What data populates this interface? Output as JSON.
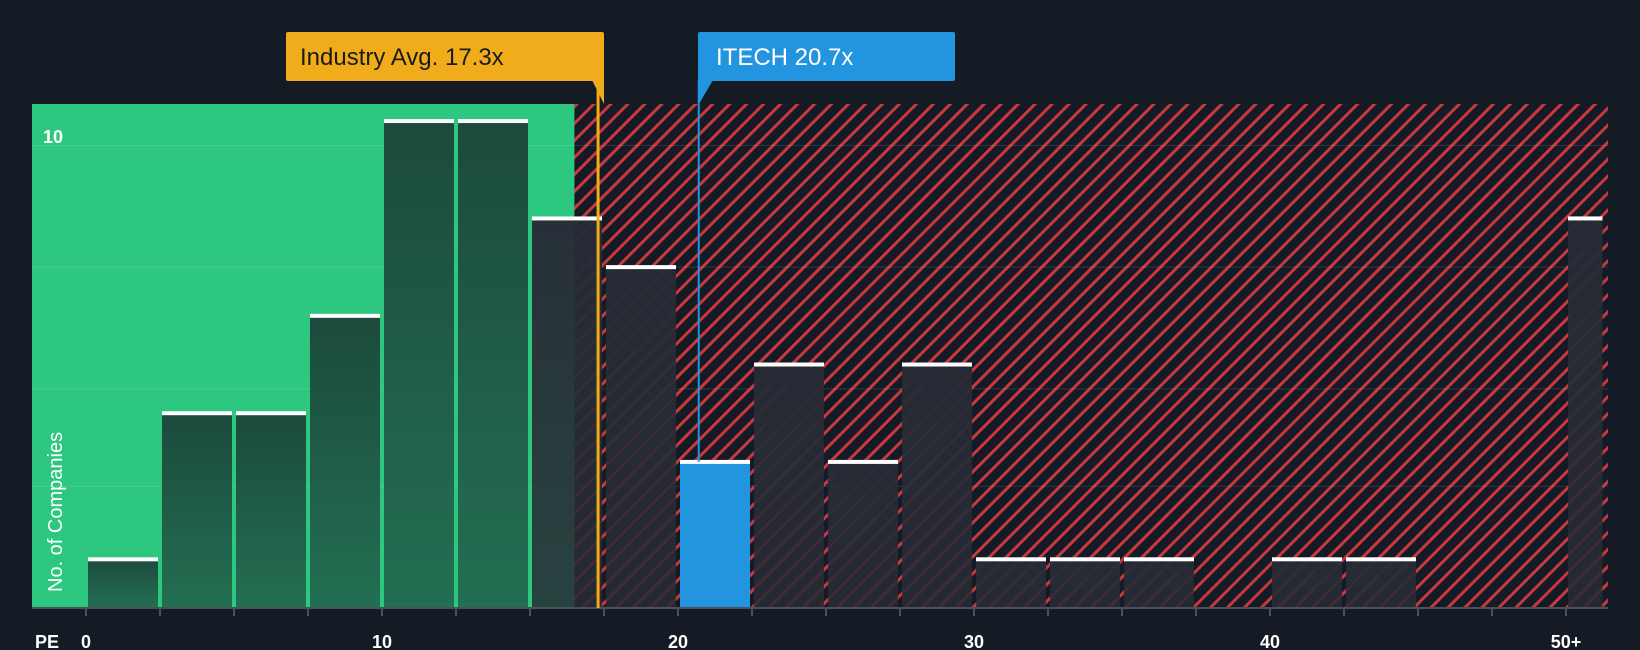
{
  "chart_data": {
    "type": "bar",
    "title": "",
    "xlabel": "PE",
    "ylabel": "No. of Companies",
    "x_ticks": [
      "0",
      "10",
      "20",
      "30",
      "40",
      "50+"
    ],
    "y_ticks": [
      "10"
    ],
    "ylim": [
      0,
      10.35
    ],
    "bins": [
      {
        "from": 0,
        "to": 2.5,
        "count": 1
      },
      {
        "from": 2.5,
        "to": 5,
        "count": 4
      },
      {
        "from": 5,
        "to": 7.5,
        "count": 4
      },
      {
        "from": 7.5,
        "to": 10,
        "count": 6
      },
      {
        "from": 10,
        "to": 12.5,
        "count": 10
      },
      {
        "from": 12.5,
        "to": 15,
        "count": 10
      },
      {
        "from": 15,
        "to": 17.5,
        "count": 8
      },
      {
        "from": 17.5,
        "to": 20,
        "count": 7
      },
      {
        "from": 20,
        "to": 22.5,
        "count": 3
      },
      {
        "from": 22.5,
        "to": 25,
        "count": 5
      },
      {
        "from": 25,
        "to": 27.5,
        "count": 3
      },
      {
        "from": 27.5,
        "to": 30,
        "count": 5
      },
      {
        "from": 30,
        "to": 32.5,
        "count": 1
      },
      {
        "from": 32.5,
        "to": 35,
        "count": 1
      },
      {
        "from": 35,
        "to": 37.5,
        "count": 1
      },
      {
        "from": 37.5,
        "to": 40,
        "count": 0
      },
      {
        "from": 40,
        "to": 42.5,
        "count": 1
      },
      {
        "from": 42.5,
        "to": 45,
        "count": 1
      },
      {
        "from": 45,
        "to": 47.5,
        "count": 0
      },
      {
        "from": 47.5,
        "to": 50,
        "count": 0
      },
      {
        "from": 50,
        "to": 51.3,
        "count": 8
      }
    ],
    "industry_avg": {
      "label": "Industry Avg. 17.3x",
      "value": 17.3
    },
    "company": {
      "label": "ITECH 20.7x",
      "value": 20.7,
      "highlight_bin": 8
    },
    "fair_zone_end": 16.5,
    "colors": {
      "background": "#151b24",
      "green_zone": "#2ec77f",
      "bar_dark": "#1c4a3c",
      "bar_dark_bottom": "#236f52",
      "red_hatch": "#c8383f",
      "bar_grey": "#272b35",
      "highlight": "#2394e0",
      "avg_line": "#f0ac1a",
      "bar_cap": "#ffffff"
    }
  }
}
